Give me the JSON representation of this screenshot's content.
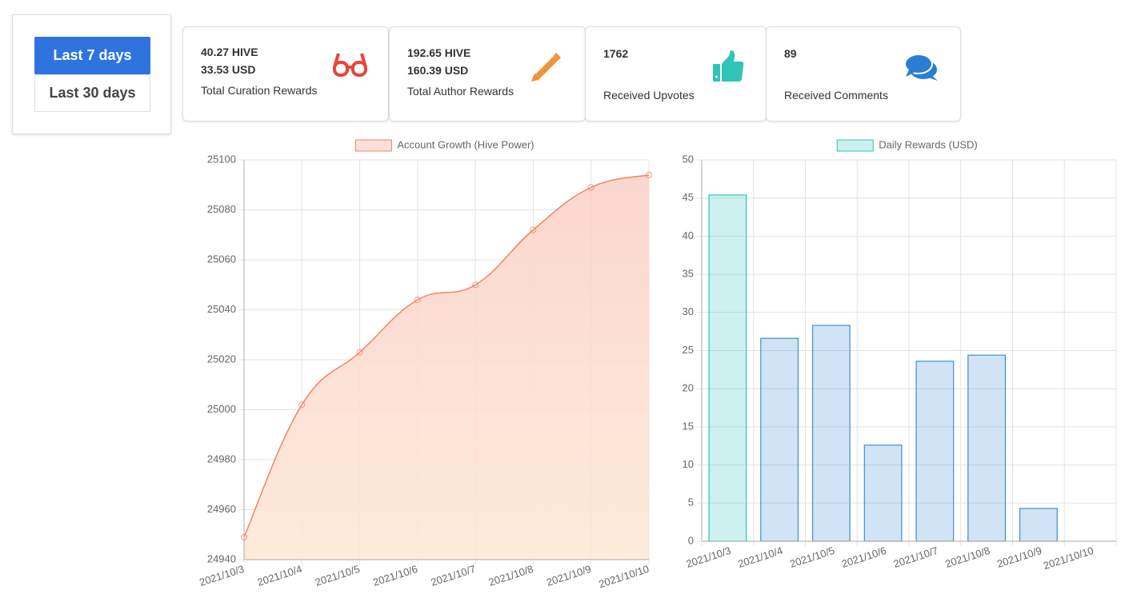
{
  "buttons": [
    "Last 7 days",
    "Last 30 days"
  ],
  "cards": [
    {
      "lines": [
        "40.27 HIVE",
        "33.53 USD"
      ],
      "label": "Total Curation Rewards"
    },
    {
      "lines": [
        "192.65 HIVE",
        "160.39 USD"
      ],
      "label": "Total Author Rewards"
    },
    {
      "lines": [
        "1762"
      ],
      "label": "Received Upvotes"
    },
    {
      "lines": [
        "89"
      ],
      "label": "Received Comments"
    }
  ],
  "chart_data": [
    {
      "type": "line",
      "categories": [
        "2021/10/3",
        "2021/10/4",
        "2021/10/5",
        "2021/10/6",
        "2021/10/7",
        "2021/10/8",
        "2021/10/9",
        "2021/10/10"
      ],
      "series": [
        {
          "name": "Account Growth (Hive Power)",
          "color": "#ef8466",
          "values": [
            24949,
            25002,
            25023,
            25044,
            25050,
            25072,
            25089,
            25094
          ]
        }
      ],
      "ylim": [
        24940,
        25100
      ],
      "yticks": [
        24940,
        24960,
        24980,
        25000,
        25020,
        25040,
        25060,
        25080,
        25100
      ],
      "grid": true
    },
    {
      "type": "bar",
      "categories": [
        "2021/10/3",
        "2021/10/4",
        "2021/10/5",
        "2021/10/6",
        "2021/10/7",
        "2021/10/8",
        "2021/10/9",
        "2021/10/10"
      ],
      "series": [
        {
          "name": "Daily Rewards (USD)",
          "color": "#2ec4b6",
          "bar_colors": [
            "#2ec4b6",
            "#3d8fd6",
            "#3d8fd6",
            "#3d8fd6",
            "#3d8fd6",
            "#3d8fd6",
            "#3d8fd6",
            "#3d8fd6"
          ],
          "values": [
            45.4,
            26.6,
            28.3,
            12.6,
            23.6,
            24.4,
            4.3,
            0
          ]
        }
      ],
      "ylim": [
        0,
        50
      ],
      "yticks": [
        0,
        5,
        10,
        15,
        20,
        25,
        30,
        35,
        40,
        45,
        50
      ],
      "grid": true
    }
  ]
}
